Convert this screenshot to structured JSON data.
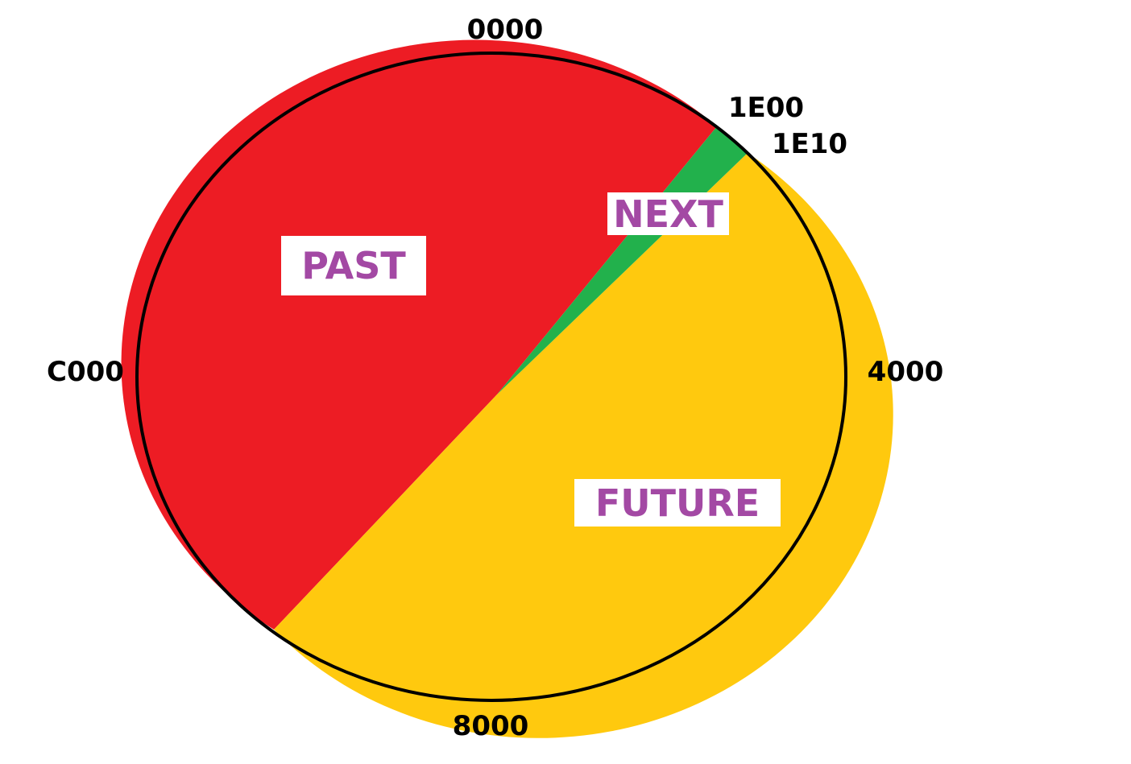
{
  "diagram": {
    "boundary_labels": {
      "top": "0000",
      "next_start": "1E00",
      "next_end": "1E10",
      "right": "4000",
      "bottom": "8000",
      "left": "C000"
    },
    "regions": [
      {
        "id": "past",
        "label": "PAST",
        "color": "#ed1c24"
      },
      {
        "id": "next",
        "label": "NEXT",
        "color": "#22b14c"
      },
      {
        "id": "future",
        "label": "FUTURE",
        "color": "#ffc90e"
      }
    ],
    "label_color": "#a349a4",
    "outline_color": "#000000"
  }
}
